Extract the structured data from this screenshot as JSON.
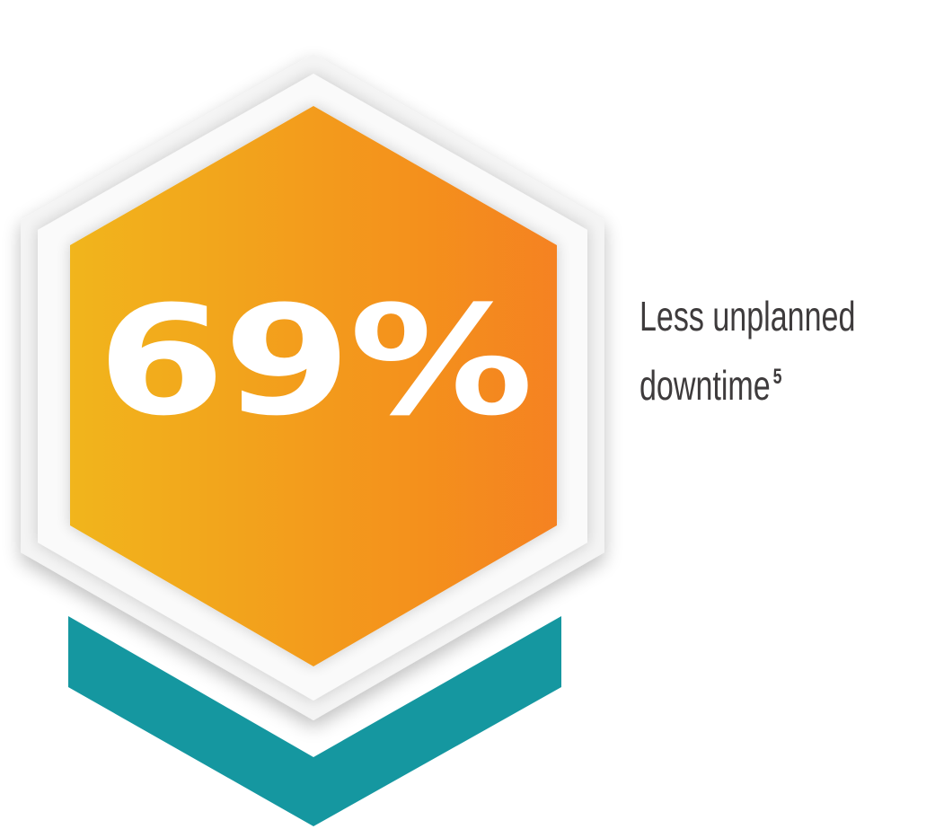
{
  "stat": {
    "value": "69%",
    "caption_line1": "Less unplanned",
    "caption_line2": "downtime",
    "footnote": "5"
  },
  "colors": {
    "hex_gradient_start": "#f1b51c",
    "hex_gradient_end": "#f58220",
    "teal_chevron": "#1597a0",
    "outer_frame": "#efefef",
    "text_dark": "#3e3b3c"
  },
  "icons": {
    "badge": "hexagon-badge-icon",
    "chevron": "chevron-down-icon"
  }
}
